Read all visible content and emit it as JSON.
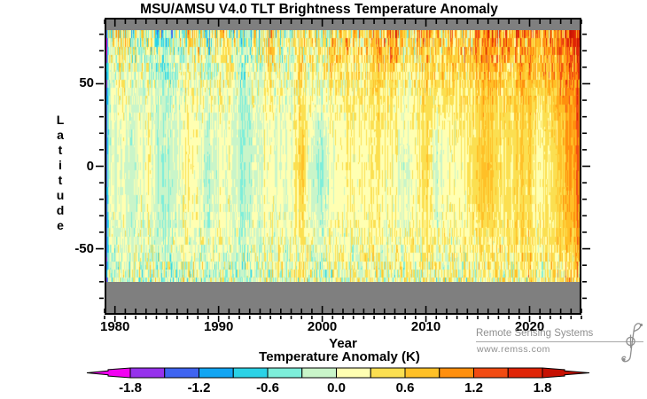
{
  "title": "MSU/AMSU V4.0 TLT Brightness Temperature Anomaly",
  "watermark": {
    "line1": "Remote Sensing Systems",
    "line2": "www.remss.com"
  },
  "colors": {
    "plot_background": "#7f7f7f",
    "frame": "#000000",
    "text": "#000000",
    "watermark_gray": "#8f8f8f"
  },
  "chart_data": {
    "type": "heatmap",
    "title": "MSU/AMSU V4.0 TLT Brightness Temperature Anomaly",
    "xlabel": "Year",
    "ylabel": "Latitude",
    "colorbar_label": "Temperature Anomaly (K)",
    "x_range": [
      1979,
      2025
    ],
    "y_axis_range": [
      -90,
      90
    ],
    "data_latitude_range": [
      -70,
      82.5
    ],
    "xticks": [
      1980,
      1990,
      2000,
      2010,
      2020
    ],
    "x_minor_tick_step_years": 1,
    "yticks": [
      50,
      0,
      -50
    ],
    "y_minor_tick_step_deg": 10,
    "grid_lines": "off",
    "legend_position": "bottom-colorbar",
    "colorbar": {
      "tick_labels": [
        "-1.8",
        "-1.2",
        "-0.6",
        "0.0",
        "0.6",
        "1.2",
        "1.8"
      ],
      "bin_edges_K": [
        -1.8,
        -1.5,
        -1.2,
        -0.9,
        -0.6,
        -0.3,
        0.0,
        0.3,
        0.6,
        0.9,
        1.2,
        1.5,
        1.8
      ],
      "segment_colors": [
        "#9632EC",
        "#3F64F0",
        "#12A5F2",
        "#2BD2E6",
        "#7DEEDA",
        "#C9F5C9",
        "#FFFFB2",
        "#FBDF51",
        "#FFC027",
        "#FF8F0E",
        "#F14B12",
        "#DF2406"
      ],
      "under_color": "#F202F2",
      "over_color": "#C61102"
    },
    "grid": {
      "years": [
        1979,
        1980,
        1981,
        1982,
        1983,
        1984,
        1985,
        1986,
        1987,
        1988,
        1989,
        1990,
        1991,
        1992,
        1993,
        1994,
        1995,
        1996,
        1997,
        1998,
        1999,
        2000,
        2001,
        2002,
        2003,
        2004,
        2005,
        2006,
        2007,
        2008,
        2009,
        2010,
        2011,
        2012,
        2013,
        2014,
        2015,
        2016,
        2017,
        2018,
        2019,
        2020,
        2021,
        2022,
        2023,
        2024
      ],
      "lat_bands": [
        82.5,
        65,
        45,
        25,
        0,
        -25,
        -45,
        -60,
        -70
      ],
      "anomaly_K": [
        [
          -0.3,
          0.3,
          0.4,
          -0.2,
          0.2,
          -0.3,
          -0.4,
          -0.1,
          0.2,
          0.3,
          -0.2,
          0.3,
          0.2,
          -0.3,
          -0.2,
          0.1,
          0.5,
          -0.2,
          0.2,
          0.5,
          0.2,
          0.3,
          0.4,
          0.5,
          0.5,
          0.4,
          0.7,
          0.6,
          0.8,
          0.4,
          0.5,
          0.8,
          0.6,
          0.6,
          0.5,
          0.6,
          0.8,
          1.2,
          0.9,
          0.7,
          0.9,
          1.1,
          0.7,
          0.8,
          1.1,
          1.4
        ],
        [
          -0.2,
          0.2,
          0.3,
          -0.1,
          0.1,
          -0.2,
          -0.3,
          -0.1,
          0.2,
          0.2,
          -0.1,
          0.3,
          0.2,
          -0.2,
          -0.1,
          0.1,
          0.4,
          -0.1,
          0.2,
          0.4,
          0.1,
          0.2,
          0.3,
          0.4,
          0.4,
          0.3,
          0.6,
          0.5,
          0.7,
          0.3,
          0.4,
          0.7,
          0.5,
          0.5,
          0.5,
          0.5,
          0.7,
          1.0,
          0.8,
          0.6,
          0.8,
          1.0,
          0.6,
          0.7,
          1.0,
          1.3
        ],
        [
          -0.15,
          0.1,
          0.2,
          -0.1,
          0.1,
          -0.15,
          -0.2,
          -0.05,
          0.15,
          0.15,
          -0.05,
          0.2,
          0.15,
          -0.2,
          -0.1,
          0.1,
          0.2,
          0.0,
          0.1,
          0.45,
          0.05,
          0.1,
          0.2,
          0.3,
          0.3,
          0.25,
          0.4,
          0.35,
          0.4,
          0.15,
          0.3,
          0.5,
          0.3,
          0.4,
          0.4,
          0.4,
          0.5,
          0.7,
          0.6,
          0.5,
          0.6,
          0.7,
          0.5,
          0.55,
          0.8,
          1.0
        ],
        [
          -0.1,
          0.05,
          0.05,
          -0.1,
          0.2,
          -0.15,
          -0.15,
          0.0,
          0.2,
          0.1,
          -0.1,
          0.1,
          0.1,
          -0.25,
          -0.15,
          0.05,
          0.1,
          0.0,
          0.15,
          0.5,
          -0.1,
          -0.05,
          0.15,
          0.25,
          0.25,
          0.2,
          0.3,
          0.25,
          0.25,
          0.05,
          0.25,
          0.45,
          0.1,
          0.2,
          0.3,
          0.3,
          0.45,
          0.6,
          0.5,
          0.4,
          0.5,
          0.55,
          0.35,
          0.4,
          0.7,
          0.95
        ],
        [
          -0.05,
          0.05,
          -0.05,
          -0.15,
          0.3,
          -0.25,
          -0.25,
          -0.05,
          0.35,
          0.05,
          -0.3,
          0.1,
          0.15,
          -0.3,
          -0.15,
          0.05,
          0.1,
          -0.05,
          0.2,
          0.65,
          -0.3,
          -0.25,
          0.05,
          0.25,
          0.2,
          0.15,
          0.25,
          0.2,
          0.15,
          -0.15,
          0.25,
          0.5,
          -0.15,
          0.1,
          0.2,
          0.25,
          0.55,
          0.75,
          0.45,
          0.3,
          0.5,
          0.5,
          0.2,
          0.25,
          0.6,
          0.95
        ],
        [
          -0.05,
          0.05,
          0.0,
          -0.1,
          0.2,
          -0.2,
          -0.2,
          0.0,
          0.25,
          0.05,
          -0.2,
          0.1,
          0.1,
          -0.25,
          -0.1,
          0.05,
          0.1,
          0.0,
          0.15,
          0.5,
          -0.2,
          -0.15,
          0.1,
          0.2,
          0.2,
          0.15,
          0.2,
          0.2,
          0.15,
          -0.05,
          0.2,
          0.4,
          -0.05,
          0.15,
          0.2,
          0.25,
          0.45,
          0.6,
          0.4,
          0.3,
          0.45,
          0.45,
          0.25,
          0.3,
          0.55,
          0.85
        ],
        [
          -0.1,
          0.0,
          0.05,
          -0.05,
          0.1,
          -0.1,
          -0.15,
          0.0,
          0.15,
          0.1,
          -0.05,
          0.1,
          0.05,
          -0.15,
          -0.05,
          0.05,
          0.1,
          0.05,
          0.1,
          0.3,
          0.0,
          0.05,
          0.1,
          0.15,
          0.15,
          0.15,
          0.2,
          0.15,
          0.2,
          0.1,
          0.15,
          0.3,
          0.15,
          0.2,
          0.25,
          0.25,
          0.3,
          0.45,
          0.4,
          0.3,
          0.4,
          0.45,
          0.3,
          0.35,
          0.5,
          0.7
        ],
        [
          -0.15,
          -0.05,
          0.0,
          -0.1,
          0.05,
          -0.1,
          -0.15,
          -0.05,
          0.1,
          0.05,
          -0.05,
          0.05,
          0.0,
          -0.15,
          -0.1,
          0.0,
          0.05,
          0.0,
          0.05,
          0.2,
          -0.05,
          0.0,
          0.05,
          0.1,
          0.1,
          0.1,
          0.15,
          0.1,
          0.15,
          0.05,
          0.1,
          0.2,
          0.1,
          0.15,
          0.15,
          0.2,
          0.2,
          0.3,
          0.3,
          0.2,
          0.3,
          0.35,
          0.2,
          0.25,
          0.35,
          0.5
        ],
        [
          -0.2,
          -0.1,
          -0.05,
          -0.15,
          0.0,
          -0.15,
          -0.2,
          -0.1,
          0.05,
          0.0,
          -0.1,
          0.0,
          -0.05,
          -0.2,
          -0.15,
          -0.05,
          0.0,
          -0.05,
          0.0,
          0.15,
          -0.1,
          -0.05,
          0.0,
          0.05,
          0.05,
          0.05,
          0.1,
          0.05,
          0.1,
          0.0,
          0.05,
          0.15,
          0.05,
          0.1,
          0.1,
          0.15,
          0.15,
          0.25,
          0.2,
          0.15,
          0.25,
          0.25,
          0.1,
          0.15,
          0.3,
          0.4
        ]
      ]
    }
  }
}
